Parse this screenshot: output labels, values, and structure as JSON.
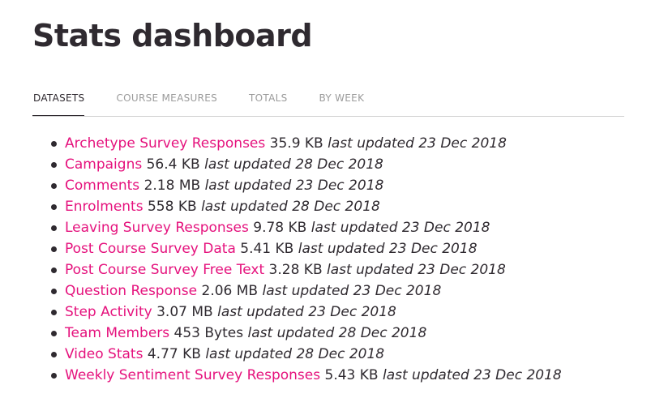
{
  "page": {
    "title": "Stats dashboard"
  },
  "tabs": [
    {
      "label": "DATASETS",
      "active": true
    },
    {
      "label": "COURSE MEASURES",
      "active": false
    },
    {
      "label": "TOTALS",
      "active": false
    },
    {
      "label": "BY WEEK",
      "active": false
    }
  ],
  "datasets": [
    {
      "name": "Archetype Survey Responses",
      "size": "35.9 KB",
      "updated": "last updated 23 Dec 2018"
    },
    {
      "name": "Campaigns",
      "size": "56.4 KB",
      "updated": "last updated 28 Dec 2018"
    },
    {
      "name": "Comments",
      "size": "2.18 MB",
      "updated": "last updated 23 Dec 2018"
    },
    {
      "name": "Enrolments",
      "size": "558 KB",
      "updated": "last updated 28 Dec 2018"
    },
    {
      "name": "Leaving Survey Responses",
      "size": "9.78 KB",
      "updated": "last updated 23 Dec 2018"
    },
    {
      "name": "Post Course Survey Data",
      "size": "5.41 KB",
      "updated": "last updated 23 Dec 2018"
    },
    {
      "name": "Post Course Survey Free Text",
      "size": "3.28 KB",
      "updated": "last updated 23 Dec 2018"
    },
    {
      "name": "Question Response",
      "size": "2.06 MB",
      "updated": "last updated 23 Dec 2018"
    },
    {
      "name": "Step Activity",
      "size": "3.07 MB",
      "updated": "last updated 23 Dec 2018"
    },
    {
      "name": "Team Members",
      "size": "453 Bytes",
      "updated": "last updated 28 Dec 2018"
    },
    {
      "name": "Video Stats",
      "size": "4.77 KB",
      "updated": "last updated 28 Dec 2018"
    },
    {
      "name": "Weekly Sentiment Survey Responses",
      "size": "5.43 KB",
      "updated": "last updated 23 Dec 2018"
    }
  ],
  "colors": {
    "link": "#e5127d",
    "text": "#2f2a30",
    "tab_inactive": "#9b9b9b"
  }
}
